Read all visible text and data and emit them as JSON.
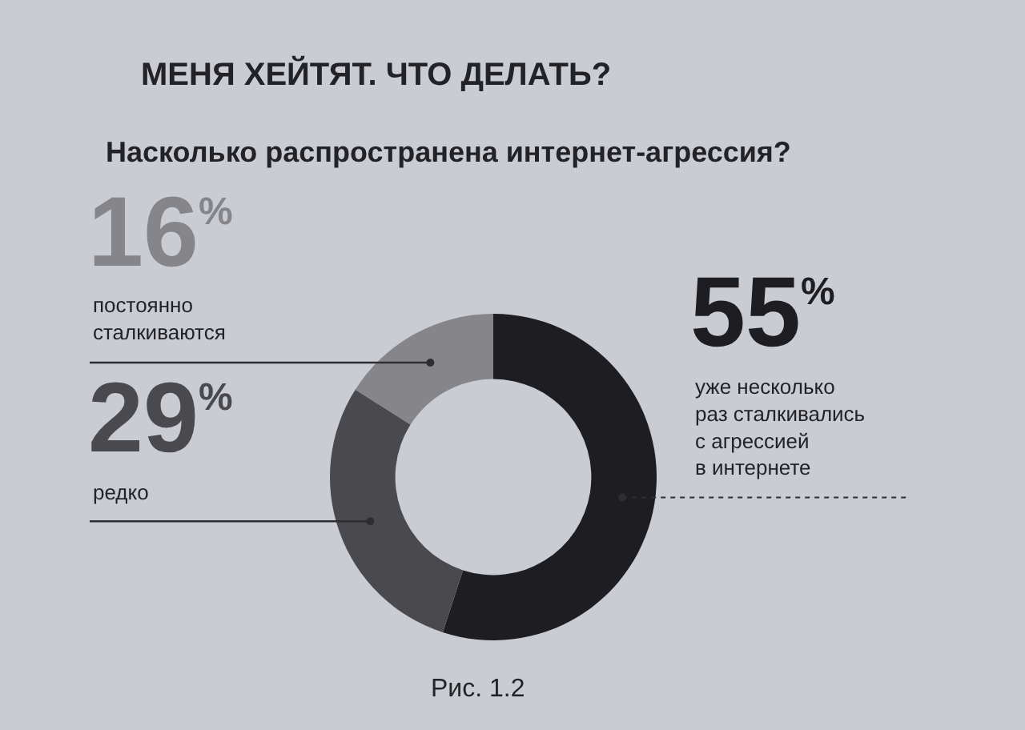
{
  "chart_data": {
    "type": "donut",
    "title": "МЕНЯ ХЕЙТЯТ. ЧТО ДЕЛАТЬ?",
    "subtitle": "Насколько распространена интернет-агрессия?",
    "categories": [
      "уже несколько\nраз сталкивались\nс агрессией\nв интернете",
      "редко",
      "постоянно\nсталкиваются"
    ],
    "values": [
      55,
      29,
      16
    ],
    "colors": [
      "#1e1e22",
      "#4a4a4e",
      "#85858a"
    ],
    "value_labels": [
      "55$^{%}$",
      "29$^{%}$",
      "16$^{%}$"
    ],
    "annotations": [
      "Рис. 1.2"
    ],
    "legend": false
  }
}
